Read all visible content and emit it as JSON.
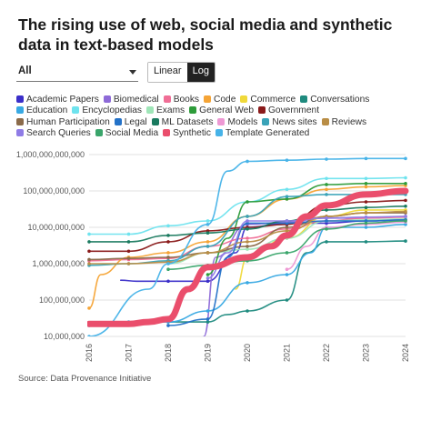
{
  "title": "The rising use of web, social media and synthetic data in text-based models",
  "controls": {
    "dropdown_value": "All",
    "scale_options": [
      "Linear",
      "Log"
    ],
    "selected_scale": "Log"
  },
  "source": "Source: Data Provenance Initiative",
  "chart_data": {
    "type": "line",
    "yscale": "log",
    "ylim": [
      10000000,
      1000000000000
    ],
    "yticks": [
      {
        "value": 10000000,
        "label": "10,000,000"
      },
      {
        "value": 100000000,
        "label": "100,000,000"
      },
      {
        "value": 1000000000,
        "label": "1,000,000,000"
      },
      {
        "value": 10000000000,
        "label": "10,000,000,000"
      },
      {
        "value": 100000000000,
        "label": "100,000,000,000"
      },
      {
        "value": 1000000000000,
        "label": "1,000,000,000,000"
      }
    ],
    "xlim": [
      2016,
      2024
    ],
    "x_ticks": [
      "2016",
      "2017",
      "2018",
      "2019",
      "2020",
      "2021",
      "2022",
      "2023",
      "2024"
    ],
    "grid": true,
    "series": [
      {
        "name": "Academic Papers",
        "color": "#3b2fc9",
        "values": [
          [
            2016.8,
            350000000
          ],
          [
            2017.2,
            330000000
          ],
          [
            2018,
            330000000
          ],
          [
            2019,
            330000000
          ],
          [
            2019.7,
            2000000000
          ],
          [
            2020,
            10000000000
          ],
          [
            2021,
            13000000000
          ],
          [
            2022,
            13000000000
          ],
          [
            2023,
            15000000000
          ],
          [
            2024,
            16000000000
          ]
        ]
      },
      {
        "name": "Biomedical",
        "color": "#8e6ad8",
        "values": [
          [
            2018.9,
            10000000
          ],
          [
            2019.2,
            1500000000
          ],
          [
            2020,
            12000000000
          ],
          [
            2021,
            14000000000
          ],
          [
            2022,
            18000000000
          ],
          [
            2023,
            18000000000
          ],
          [
            2024,
            20000000000
          ]
        ]
      },
      {
        "name": "Books",
        "color": "#f06e96",
        "values": [
          [
            2016,
            1200000000
          ],
          [
            2017,
            1300000000
          ],
          [
            2018,
            1400000000
          ],
          [
            2019,
            3000000000
          ],
          [
            2020,
            5000000000
          ],
          [
            2021,
            9000000000
          ],
          [
            2022,
            15000000000
          ],
          [
            2023,
            18000000000
          ],
          [
            2024,
            19000000000
          ]
        ]
      },
      {
        "name": "Code",
        "color": "#f5a436",
        "values": [
          [
            2016,
            60000000
          ],
          [
            2016.3,
            500000000
          ],
          [
            2017,
            1500000000
          ],
          [
            2018,
            2000000000
          ],
          [
            2019,
            4000000000
          ],
          [
            2020,
            20000000000
          ],
          [
            2021,
            60000000000
          ],
          [
            2022,
            110000000000
          ],
          [
            2023,
            130000000000
          ],
          [
            2024,
            140000000000
          ]
        ]
      },
      {
        "name": "Commerce",
        "color": "#f0d93a",
        "values": [
          [
            2019.7,
            200000000
          ],
          [
            2020,
            1500000000
          ],
          [
            2021,
            5000000000
          ],
          [
            2022,
            20000000000
          ],
          [
            2023,
            30000000000
          ],
          [
            2024,
            30000000000
          ]
        ]
      },
      {
        "name": "Conversations",
        "color": "#1f8b7f",
        "values": [
          [
            2018,
            25000000
          ],
          [
            2019,
            25000000
          ],
          [
            2019.5,
            40000000
          ],
          [
            2020,
            50000000
          ],
          [
            2021,
            100000000
          ],
          [
            2021.5,
            2000000000
          ],
          [
            2022,
            4000000000
          ],
          [
            2023,
            4000000000
          ],
          [
            2024,
            4200000000
          ]
        ]
      },
      {
        "name": "Education",
        "color": "#38a9e3",
        "values": [
          [
            2016,
            20000000
          ],
          [
            2017,
            25000000
          ],
          [
            2018,
            25000000
          ],
          [
            2019,
            50000000
          ],
          [
            2020,
            300000000
          ],
          [
            2021,
            500000000
          ],
          [
            2021.6,
            2000000000
          ],
          [
            2022,
            10000000000
          ],
          [
            2023,
            10000000000
          ],
          [
            2024,
            12000000000
          ]
        ]
      },
      {
        "name": "Encyclopedias",
        "color": "#6ee3ee",
        "values": [
          [
            2016,
            6500000000
          ],
          [
            2017,
            6500000000
          ],
          [
            2018,
            11000000000
          ],
          [
            2019,
            15000000000
          ],
          [
            2020,
            50000000000
          ],
          [
            2021,
            110000000000
          ],
          [
            2022,
            220000000000
          ],
          [
            2023,
            220000000000
          ],
          [
            2024,
            230000000000
          ]
        ]
      },
      {
        "name": "Exams",
        "color": "#9fe6b8",
        "values": [
          [
            2018,
            1000000000
          ],
          [
            2019,
            2000000000
          ],
          [
            2020,
            2500000000
          ],
          [
            2021,
            5000000000
          ],
          [
            2022,
            15000000000
          ],
          [
            2023,
            16000000000
          ],
          [
            2024,
            17000000000
          ]
        ]
      },
      {
        "name": "General Web",
        "color": "#2e9c3a",
        "values": [
          [
            2019,
            500000000
          ],
          [
            2019.5,
            5000000000
          ],
          [
            2020,
            50000000000
          ],
          [
            2021,
            60000000000
          ],
          [
            2022,
            150000000000
          ],
          [
            2023,
            160000000000
          ],
          [
            2024,
            160000000000
          ]
        ]
      },
      {
        "name": "Government",
        "color": "#8a1a1a",
        "values": [
          [
            2016,
            2200000000
          ],
          [
            2017,
            2200000000
          ],
          [
            2018,
            4000000000
          ],
          [
            2019,
            8000000000
          ],
          [
            2020,
            10000000000
          ],
          [
            2021,
            12000000000
          ],
          [
            2022,
            40000000000
          ],
          [
            2023,
            50000000000
          ],
          [
            2024,
            55000000000
          ]
        ]
      },
      {
        "name": "Human Participation",
        "color": "#8b6b4a",
        "values": [
          [
            2016,
            1300000000
          ],
          [
            2017,
            1400000000
          ],
          [
            2018,
            1500000000
          ],
          [
            2019,
            2000000000
          ],
          [
            2020,
            3000000000
          ],
          [
            2021,
            10000000000
          ],
          [
            2022,
            20000000000
          ],
          [
            2023,
            25000000000
          ],
          [
            2024,
            25000000000
          ]
        ]
      },
      {
        "name": "Legal",
        "color": "#2472c8",
        "values": [
          [
            2018,
            20000000
          ],
          [
            2019,
            30000000
          ],
          [
            2019.5,
            1500000000
          ],
          [
            2020,
            13000000000
          ],
          [
            2021,
            13000000000
          ],
          [
            2022,
            15000000000
          ],
          [
            2023,
            15000000000
          ],
          [
            2024,
            16000000000
          ]
        ]
      },
      {
        "name": "ML Datasets",
        "color": "#1a7a5f",
        "values": [
          [
            2016,
            4000000000
          ],
          [
            2017,
            4000000000
          ],
          [
            2018,
            6000000000
          ],
          [
            2019,
            7000000000
          ],
          [
            2020,
            9000000000
          ],
          [
            2021,
            15000000000
          ],
          [
            2022,
            30000000000
          ],
          [
            2023,
            35000000000
          ],
          [
            2024,
            38000000000
          ]
        ]
      },
      {
        "name": "Models",
        "color": "#ee99d4",
        "values": [
          [
            2021,
            700000000
          ],
          [
            2021.5,
            3000000000
          ],
          [
            2022,
            10000000000
          ],
          [
            2023,
            12000000000
          ],
          [
            2024,
            14000000000
          ]
        ]
      },
      {
        "name": "News sites",
        "color": "#3aa3b8",
        "values": [
          [
            2016,
            900000000
          ],
          [
            2017,
            1000000000
          ],
          [
            2018,
            1200000000
          ],
          [
            2019,
            3000000000
          ],
          [
            2020,
            20000000000
          ],
          [
            2021,
            70000000000
          ],
          [
            2022,
            80000000000
          ],
          [
            2023,
            80000000000
          ],
          [
            2024,
            80000000000
          ]
        ]
      },
      {
        "name": "Reviews",
        "color": "#b98d45",
        "values": [
          [
            2016,
            1000000000
          ],
          [
            2017,
            1000000000
          ],
          [
            2018,
            1100000000
          ],
          [
            2019,
            2000000000
          ],
          [
            2020,
            4000000000
          ],
          [
            2021,
            8000000000
          ],
          [
            2022,
            20000000000
          ],
          [
            2023,
            25000000000
          ],
          [
            2024,
            27000000000
          ]
        ]
      },
      {
        "name": "Search Queries",
        "color": "#8f7ce6",
        "values": [
          [
            2019,
            400000000
          ],
          [
            2019.5,
            2000000000
          ],
          [
            2020,
            15000000000
          ],
          [
            2021,
            15000000000
          ],
          [
            2022,
            18000000000
          ],
          [
            2023,
            19000000000
          ],
          [
            2024,
            20000000000
          ]
        ]
      },
      {
        "name": "Social Media",
        "color": "#3aa56b",
        "values": [
          [
            2018,
            700000000
          ],
          [
            2019,
            900000000
          ],
          [
            2020,
            1200000000
          ],
          [
            2021,
            2000000000
          ],
          [
            2022,
            9000000000
          ],
          [
            2023,
            13000000000
          ],
          [
            2024,
            15000000000
          ]
        ]
      },
      {
        "name": "Synthetic",
        "color": "#ea4e6c",
        "values": [
          [
            2016,
            22000000
          ],
          [
            2017,
            22000000
          ],
          [
            2017.5,
            25000000
          ],
          [
            2018,
            30000000
          ],
          [
            2018.5,
            200000000
          ],
          [
            2019,
            800000000
          ],
          [
            2020,
            1500000000
          ],
          [
            2020.6,
            3000000000
          ],
          [
            2021,
            6000000000
          ],
          [
            2021.5,
            20000000000
          ],
          [
            2022,
            40000000000
          ],
          [
            2023,
            80000000000
          ],
          [
            2024,
            100000000000
          ]
        ]
      },
      {
        "name": "Template Generated",
        "color": "#47b3e8",
        "values": [
          [
            2016,
            10000000
          ],
          [
            2017.5,
            200000000
          ],
          [
            2018,
            1000000000
          ],
          [
            2019,
            12000000000
          ],
          [
            2019.5,
            350000000000
          ],
          [
            2020,
            650000000000
          ],
          [
            2021,
            700000000000
          ],
          [
            2022,
            750000000000
          ],
          [
            2023,
            780000000000
          ],
          [
            2024,
            780000000000
          ]
        ]
      }
    ]
  }
}
